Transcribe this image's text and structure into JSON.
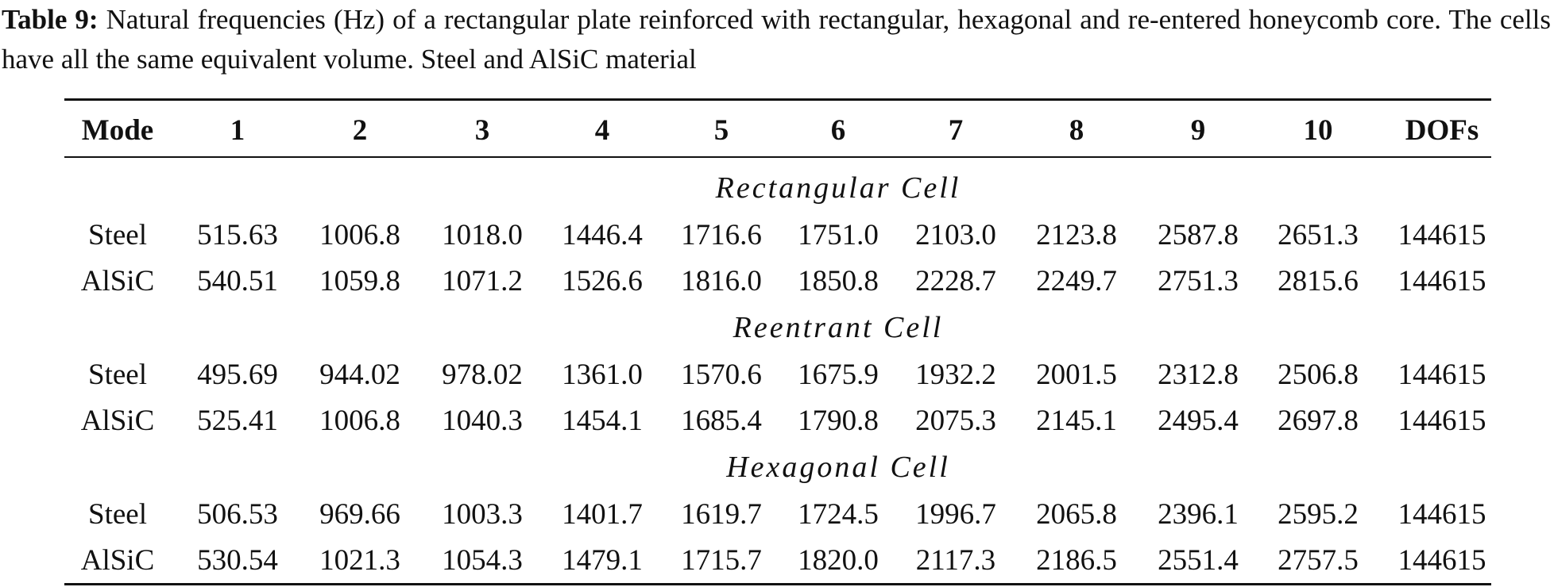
{
  "caption": {
    "label": "Table 9:",
    "text": "Natural frequencies (Hz) of a rectangular plate reinforced with rectangular, hexagonal and re-entered honeycomb core. The cells have all the same equivalent volume. Steel and AlSiC material"
  },
  "table": {
    "header": [
      "Mode",
      "1",
      "2",
      "3",
      "4",
      "5",
      "6",
      "7",
      "8",
      "9",
      "10",
      "DOFs"
    ],
    "sections": [
      {
        "title": "Rectangular Cell",
        "rows": [
          [
            "Steel",
            "515.63",
            "1006.8",
            "1018.0",
            "1446.4",
            "1716.6",
            "1751.0",
            "2103.0",
            "2123.8",
            "2587.8",
            "2651.3",
            "144615"
          ],
          [
            "AlSiC",
            "540.51",
            "1059.8",
            "1071.2",
            "1526.6",
            "1816.0",
            "1850.8",
            "2228.7",
            "2249.7",
            "2751.3",
            "2815.6",
            "144615"
          ]
        ]
      },
      {
        "title": "Reentrant Cell",
        "rows": [
          [
            "Steel",
            "495.69",
            "944.02",
            "978.02",
            "1361.0",
            "1570.6",
            "1675.9",
            "1932.2",
            "2001.5",
            "2312.8",
            "2506.8",
            "144615"
          ],
          [
            "AlSiC",
            "525.41",
            "1006.8",
            "1040.3",
            "1454.1",
            "1685.4",
            "1790.8",
            "2075.3",
            "2145.1",
            "2495.4",
            "2697.8",
            "144615"
          ]
        ]
      },
      {
        "title": "Hexagonal Cell",
        "rows": [
          [
            "Steel",
            "506.53",
            "969.66",
            "1003.3",
            "1401.7",
            "1619.7",
            "1724.5",
            "1996.7",
            "2065.8",
            "2396.1",
            "2595.2",
            "144615"
          ],
          [
            "AlSiC",
            "530.54",
            "1021.3",
            "1054.3",
            "1479.1",
            "1715.7",
            "1820.0",
            "2117.3",
            "2186.5",
            "2551.4",
            "2757.5",
            "144615"
          ]
        ]
      }
    ]
  }
}
